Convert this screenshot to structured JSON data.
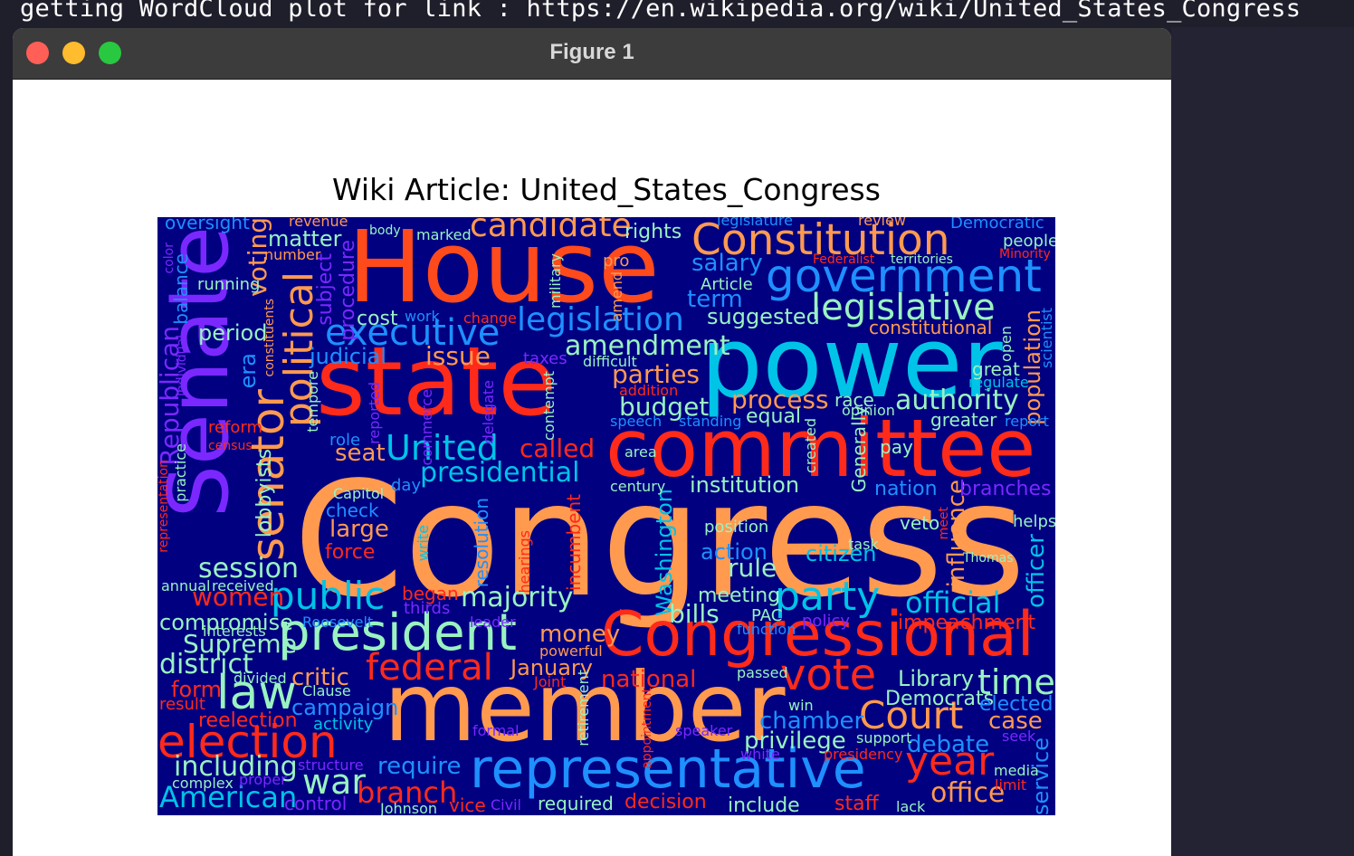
{
  "terminal": {
    "line": "getting WordCloud plot for link : https://en.wikipedia.org/wiki/United_States_Congress"
  },
  "window": {
    "title": "Figure 1"
  },
  "plot": {
    "title": "Wiki Article: United_States_Congress"
  },
  "colors": {
    "cloud_background": "#000080",
    "palette": [
      "#ff4a1c",
      "#ff9a4f",
      "#00c3e8",
      "#1e90ff",
      "#7a28ff",
      "#9af2c0",
      "#ff2a1a"
    ]
  },
  "wordcloud": {
    "words": [
      "Congress",
      "member",
      "power",
      "House",
      "state",
      "committee",
      "Senate",
      "Congressional",
      "representative",
      "president",
      "Constitution",
      "government",
      "senator",
      "political",
      "legislative",
      "law",
      "election",
      "party",
      "executive",
      "legislation",
      "United",
      "public",
      "federal",
      "vote",
      "Court",
      "candidate",
      "presidential",
      "majority",
      "amendment",
      "parties",
      "year",
      "official",
      "authority",
      "process",
      "time",
      "budget",
      "institution",
      "war",
      "office",
      "American",
      "session",
      "Republican",
      "lobbyists",
      "voting",
      "matter",
      "branch",
      "Washington",
      "district",
      "including",
      "women",
      "seat",
      "bills",
      "rule",
      "citizen",
      "salary",
      "term",
      "suggested",
      "called",
      "issue",
      "judicial",
      "period",
      "subject",
      "procedure",
      "cost",
      "era",
      "large",
      "force",
      "check",
      "Capitol",
      "Supreme",
      "compromise",
      "require",
      "campaign",
      "critic",
      "form",
      "reelection",
      "money",
      "national",
      "January",
      "chamber",
      "privilege",
      "debate",
      "case",
      "Library",
      "Democrats",
      "elected",
      "impeachment",
      "influence",
      "officer",
      "service",
      "population",
      "constitutional",
      "great",
      "regulate",
      "greater",
      "nation",
      "branches",
      "veto",
      "helps",
      "task",
      "position",
      "action",
      "meeting",
      "PAC",
      "policy",
      "function",
      "oversight",
      "revenue",
      "body",
      "marked",
      "rights",
      "legislature",
      "review",
      "Democratic",
      "people",
      "Minority",
      "Federalist",
      "territories",
      "Article",
      "pro",
      "amend",
      "military",
      "running",
      "balance",
      "color",
      "number",
      "work",
      "change",
      "constituents",
      "individual",
      "reform",
      "census",
      "practice",
      "representation",
      "tempore",
      "reported",
      "commerce",
      "delegate",
      "contempt",
      "taxes",
      "difficult",
      "addition",
      "speech",
      "standing",
      "equal",
      "race",
      "opinion",
      "report",
      "scientist",
      "open",
      "created",
      "Generally",
      "pay",
      "area",
      "role",
      "day",
      "century",
      "resolution",
      "write",
      "hearings",
      "incumbent",
      "began",
      "thirds",
      "leader",
      "Roosevelt",
      "interests",
      "annual",
      "received",
      "divided",
      "Clause",
      "result",
      "activity",
      "structure",
      "proper",
      "complex",
      "control",
      "Johnson",
      "vice",
      "Civil",
      "formal",
      "retirement",
      "appointment",
      "speaker",
      "passed",
      "win",
      "white",
      "presidency",
      "support",
      "seek",
      "media",
      "limit",
      "staff",
      "lack",
      "include",
      "decision",
      "required",
      "Thomas",
      "meet",
      "powerful",
      "Joint"
    ]
  }
}
